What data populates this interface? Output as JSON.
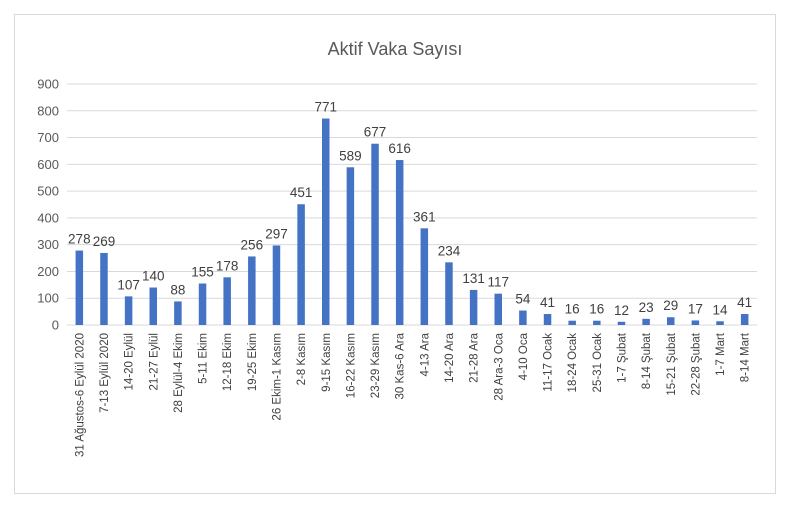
{
  "chart_data": {
    "type": "bar",
    "title": "Aktif Vaka Sayısı",
    "xlabel": "",
    "ylabel": "",
    "ylim": [
      0,
      900
    ],
    "yticks": [
      "0",
      "100",
      "200",
      "300",
      "400",
      "500",
      "600",
      "700",
      "800",
      "900"
    ],
    "grid": true,
    "legend": "none",
    "bar_color": "#4472c4",
    "categories": [
      "31 Ağustos-6 Eylül 2020",
      "7-13 Eylül 2020",
      "14-20 Eylül",
      "21-27 Eylül",
      "28 Eylül-4 Ekim",
      "5-11 Ekim",
      "12-18 Ekim",
      "19-25 Ekim",
      "26 Ekim-1 Kasım",
      "2-8 Kasım",
      "9-15 Kasım",
      "16-22 Kasım",
      "23-29 Kasım",
      "30 Kas-6 Ara",
      "4-13 Ara",
      "14-20 Ara",
      "21-28 Ara",
      "28 Ara-3 Oca",
      "4-10 Oca",
      "11-17 Ocak",
      "18-24 Ocak",
      "25-31 Ocak",
      "1-7 Şubat",
      "8-14 Şubat",
      "15-21 Şubat",
      "22-28 Şubat",
      "1-7 Mart",
      "8-14 Mart"
    ],
    "values": [
      278,
      269,
      107,
      140,
      88,
      155,
      178,
      256,
      297,
      451,
      771,
      589,
      677,
      616,
      361,
      234,
      131,
      117,
      54,
      41,
      16,
      16,
      12,
      23,
      29,
      17,
      14,
      41
    ]
  }
}
